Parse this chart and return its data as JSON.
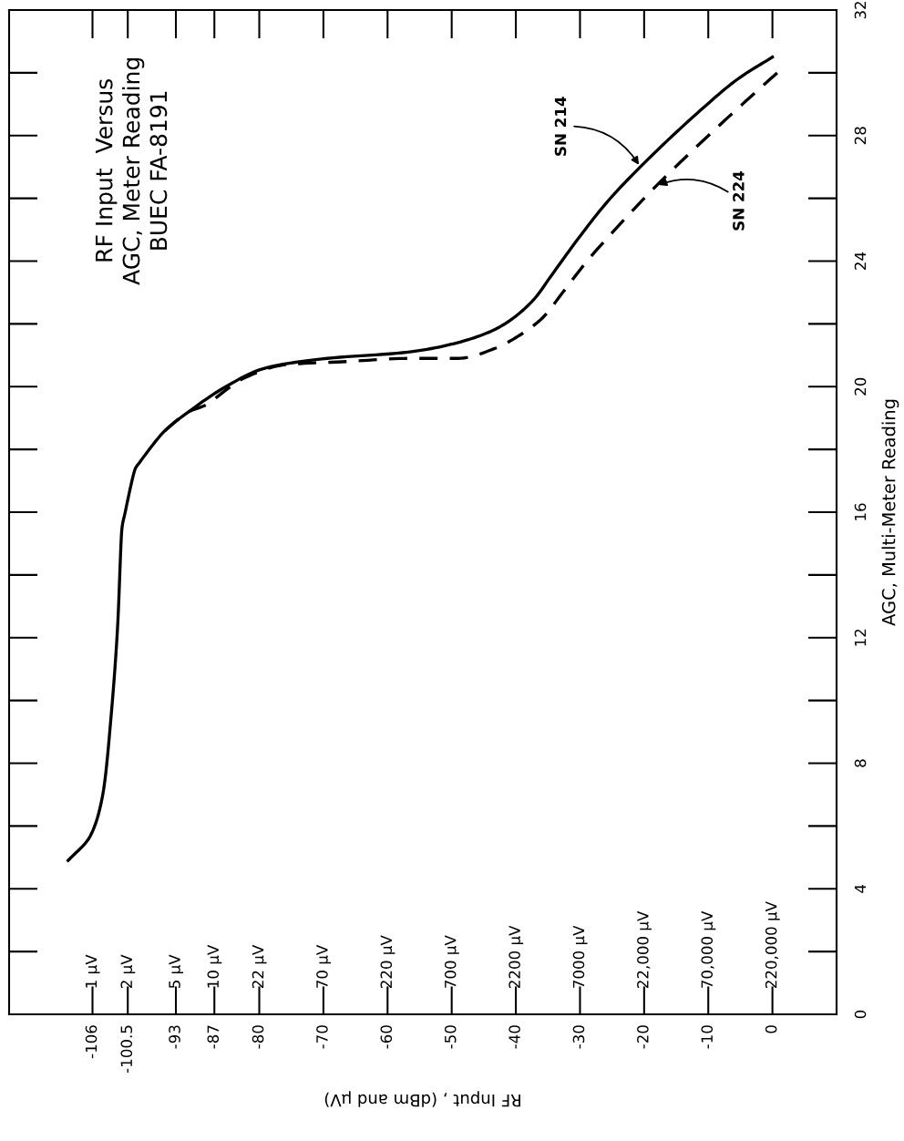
{
  "chart_data": {
    "type": "line",
    "title": "RF Input  Versus\nAGC, Meter Reading\nBUEC FA-8191",
    "xlabel": "RF Input , (dBm and µV)",
    "ylabel": "AGC, Multi-Meter Reading",
    "series": [
      {
        "color": "#000000",
        "line_style": "solid",
        "x": [
          -109.8,
          -106.3,
          -104.4,
          -103.1,
          -102.1,
          -101.4,
          -100.9,
          -99.3,
          -98.6,
          -94.7,
          -91.0,
          -85.2,
          -78.9,
          -69.4,
          -56.8,
          -49.1,
          -43.5,
          -40.3,
          -37.1,
          -34.6,
          -30.7,
          -25.7,
          -20.6,
          -11.8,
          -5.4,
          0.0
        ],
        "values": [
          4.9,
          5.7,
          7.0,
          9.5,
          12.3,
          15.5,
          16.0,
          17.4,
          17.6,
          18.6,
          19.2,
          20.0,
          20.6,
          20.9,
          21.1,
          21.4,
          21.8,
          22.2,
          22.8,
          23.5,
          24.6,
          25.9,
          27.0,
          28.7,
          29.8,
          30.5
        ]
      },
      {
        "color": "#000000",
        "line_style": "dashed",
        "x": [
          -94.7,
          -91.0,
          -88.5,
          -82.1,
          -75.8,
          -66.3,
          -56.8,
          -49.1,
          -43.5,
          -39.7,
          -35.8,
          -32.7,
          -28.9,
          -23.2,
          -18.1,
          -10.5,
          -3.6,
          1.3
        ],
        "values": [
          18.6,
          19.2,
          19.4,
          20.3,
          20.7,
          20.8,
          20.9,
          20.9,
          21.2,
          21.6,
          22.2,
          23.0,
          24.0,
          25.3,
          26.4,
          27.9,
          29.2,
          30.1
        ]
      }
    ],
    "xlim": [
      -119,
      10
    ],
    "xticks": [
      -106,
      -100.5,
      -93,
      -87,
      -80,
      -70,
      -60,
      -50,
      -40,
      -30,
      -20,
      -10,
      0
    ],
    "ylim": [
      0,
      32
    ],
    "yticks": [
      0,
      4,
      8,
      12,
      16,
      20,
      24,
      28,
      32
    ],
    "annotations": [
      {
        "text": "SN 214",
        "x": -20.6,
        "y": 27.0
      },
      {
        "text": "SN 224",
        "x": -18.1,
        "y": 26.4
      },
      "1 µV",
      "2 µV",
      "5 µV",
      "10 µV",
      "22 µV",
      "70 µV",
      "220 µV",
      "700 µV",
      "2200 µV",
      "7000 µV",
      "22,000 µV",
      "70,000 µV",
      "220,000 µV"
    ],
    "grid": false,
    "legend": false,
    "marker": "none"
  }
}
